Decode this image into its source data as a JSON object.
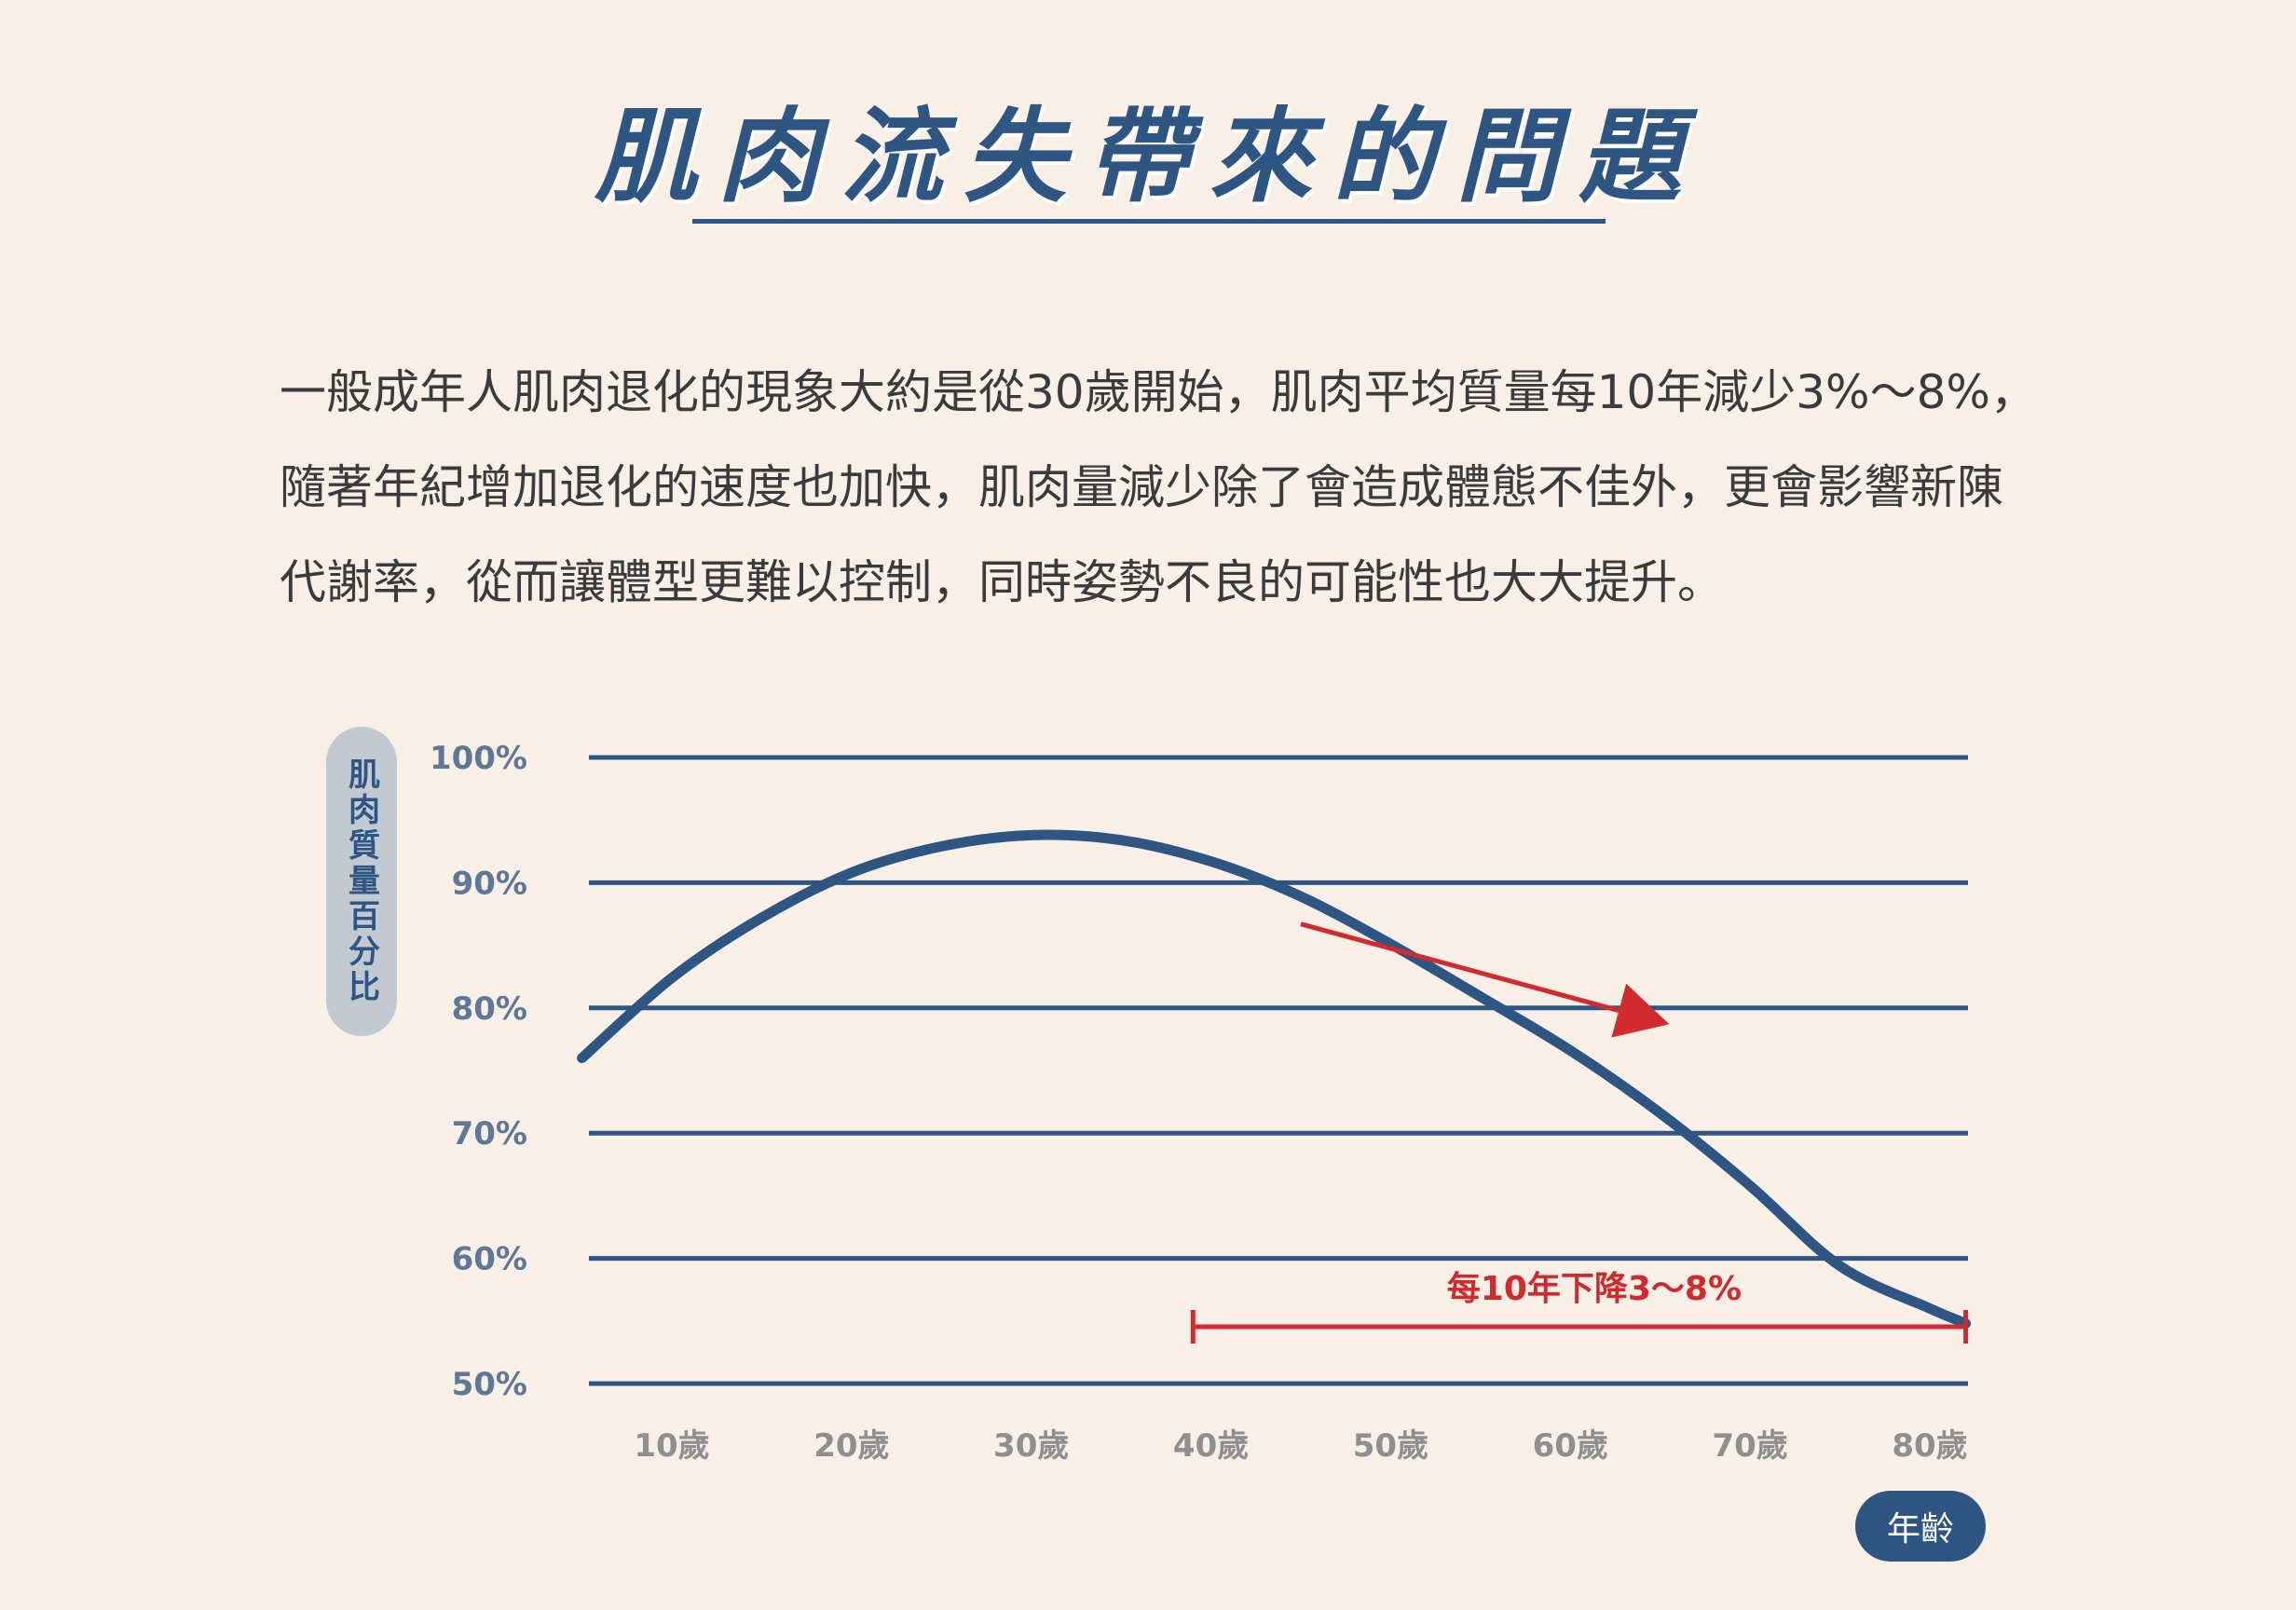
{
  "title": "肌肉流失帶來的問題",
  "intro": [
    "一般成年人肌肉退化的現象大約是從30歲開始，肌肉平均質量每10年減少3%～8%，",
    "隨著年紀增加退化的速度也加快，肌肉量減少除了會造成體態不佳外，更會影響新陳",
    "代謝率，從而讓體型更難以控制，同時姿勢不良的可能性也大大提升。"
  ],
  "colors": {
    "accent": "#2f5683",
    "highlight": "#d12a2f",
    "background": "#f8efe7"
  },
  "chart_data": {
    "type": "line",
    "ylabel": "肌肉質量百分比",
    "xlabel": "年齡",
    "y_ticks": [
      "100%",
      "90%",
      "80%",
      "70%",
      "60%",
      "50%"
    ],
    "x_ticks": [
      "10歲",
      "20歲",
      "30歲",
      "40歲",
      "50歲",
      "60歲",
      "70歲",
      "80歲"
    ],
    "ylim": [
      50,
      100
    ],
    "xlim": [
      5.5,
      83.5
    ],
    "grid": true,
    "series": [
      {
        "x": [
          5,
          10,
          15,
          20,
          25,
          30,
          35,
          40,
          45,
          50,
          55,
          60,
          65,
          70,
          75,
          80,
          82
        ],
        "values": [
          76,
          82.4,
          87.2,
          90.8,
          92.9,
          93.8,
          93.4,
          91.7,
          88.9,
          85.1,
          80.9,
          76.6,
          71.6,
          65.8,
          59.4,
          56,
          54.8
        ]
      }
    ],
    "annotations": {
      "decline_label": "每10年下降3～8%",
      "range_start": 39,
      "range_end": 82,
      "arrow_from": [
        45,
        86.7
      ],
      "arrow_to": [
        65.5,
        78.7
      ]
    }
  }
}
